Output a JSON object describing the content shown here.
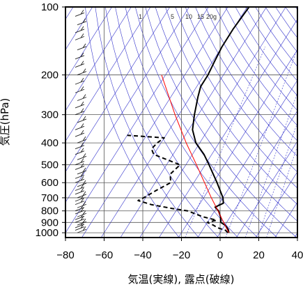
{
  "chart_data": {
    "type": "line",
    "title": "",
    "xlabel": "気温(実線), 露点(破線)",
    "ylabel": "気圧(hPa)",
    "xlim": [
      -80,
      40
    ],
    "ylim": [
      1050,
      100
    ],
    "y_scale": "log",
    "x_ticks": [
      -80,
      -60,
      -40,
      -20,
      0,
      20,
      40
    ],
    "x_tick_labels": [
      "−80",
      "−60",
      "−40",
      "−20",
      "0",
      "20",
      "40"
    ],
    "y_ticks": [
      100,
      200,
      300,
      400,
      500,
      600,
      700,
      800,
      900,
      1000
    ],
    "y_tick_labels": [
      "100",
      "200",
      "300",
      "400",
      "500",
      "600",
      "700",
      "800",
      "900",
      "1000"
    ],
    "grid": true,
    "isotherm_skew_deg_per_decade": 74,
    "mixing_ratio_labels": [
      "1",
      "5",
      "10",
      "15",
      "20g"
    ],
    "mixing_ratio_values_gkg": [
      1,
      5,
      10,
      15,
      20
    ],
    "colors": {
      "temperature": "#000000",
      "dewpoint": "#000000",
      "parcel": "#ff0000",
      "background_lines": "#3333cc",
      "grid": "#555555"
    },
    "series": [
      {
        "style": "solid",
        "points": [
          [
            1000,
            4.5
          ],
          [
            975,
            3.5
          ],
          [
            950,
            2
          ],
          [
            925,
            0
          ],
          [
            900,
            -3
          ],
          [
            850,
            -5
          ],
          [
            800,
            -8
          ],
          [
            770,
            -11
          ],
          [
            740,
            -8
          ],
          [
            700,
            -10
          ],
          [
            600,
            -18
          ],
          [
            500,
            -28
          ],
          [
            450,
            -34
          ],
          [
            400,
            -42
          ],
          [
            350,
            -48
          ],
          [
            300,
            -52
          ],
          [
            250,
            -56
          ],
          [
            225,
            -58
          ],
          [
            200,
            -58
          ],
          [
            175,
            -59
          ],
          [
            150,
            -60
          ],
          [
            125,
            -60
          ],
          [
            100,
            -59
          ]
        ]
      },
      {
        "style": "dashed",
        "points": [
          [
            1000,
            4
          ],
          [
            975,
            2
          ],
          [
            950,
            -3
          ],
          [
            925,
            -6
          ],
          [
            900,
            -10
          ],
          [
            880,
            -6
          ],
          [
            850,
            -14
          ],
          [
            800,
            -24
          ],
          [
            780,
            -33
          ],
          [
            750,
            -45
          ],
          [
            720,
            -53
          ],
          [
            700,
            -51
          ],
          [
            650,
            -47
          ],
          [
            600,
            -42
          ],
          [
            550,
            -45
          ],
          [
            500,
            -43
          ],
          [
            450,
            -60
          ],
          [
            425,
            -63
          ],
          [
            400,
            -62
          ],
          [
            380,
            -60
          ],
          [
            370,
            -80
          ]
        ]
      },
      {
        "style": "parcel",
        "points": [
          [
            1000,
            4.5
          ],
          [
            950,
            1.5
          ],
          [
            900,
            -1.5
          ],
          [
            850,
            -4.8
          ],
          [
            800,
            -8.3
          ],
          [
            750,
            -12
          ],
          [
            700,
            -16
          ],
          [
            600,
            -24.5
          ],
          [
            500,
            -34.5
          ],
          [
            400,
            -47
          ],
          [
            300,
            -62
          ],
          [
            250,
            -71
          ],
          [
            200,
            -82
          ]
        ]
      }
    ],
    "wind_barbs_pressures": [
      1000,
      975,
      950,
      925,
      900,
      875,
      850,
      825,
      800,
      775,
      750,
      725,
      700,
      675,
      650,
      625,
      600,
      575,
      550,
      525,
      500,
      475,
      450,
      425,
      400,
      375,
      350,
      325,
      300,
      280,
      260,
      240,
      220,
      200,
      185,
      170,
      155,
      140,
      130,
      120,
      110,
      100
    ]
  }
}
